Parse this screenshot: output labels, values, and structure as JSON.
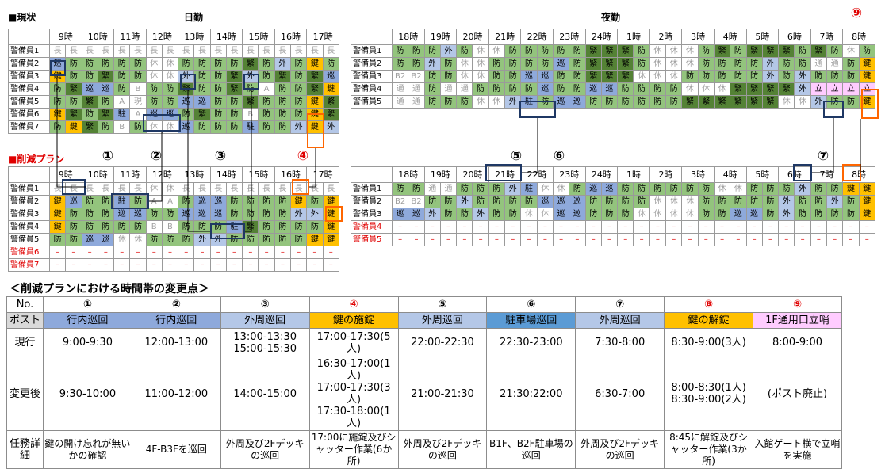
{
  "labels": {
    "current": "■現状",
    "cut": "■削減プラン",
    "day": "日勤",
    "night": "夜勤",
    "summary_title": "＜削減プランにおける時間帯の変更点＞"
  },
  "legend_colors": {
    "guard": "#93c47d",
    "patrol": "#8ea9db",
    "outer": "#b4c7e7",
    "emergency": "#548235",
    "key": "#ffc000",
    "stand": "#ffccff",
    "dash": "#e00000"
  },
  "day_hours": [
    "9時",
    "10時",
    "11時",
    "12時",
    "13時",
    "14時",
    "15時",
    "16時",
    "17時"
  ],
  "night_hours": [
    "18時",
    "19時",
    "20時",
    "21時",
    "22時",
    "23時",
    "24時",
    "1時",
    "2時",
    "3時",
    "4時",
    "5時",
    "6時",
    "7時",
    "8時"
  ],
  "guards_current": [
    "警備員1",
    "警備員2",
    "警備員3",
    "警備員4",
    "警備員5",
    "警備員6",
    "警備員7"
  ],
  "guards_plan": [
    "警備員1",
    "警備員2",
    "警備員3",
    "警備員4",
    "警備員5",
    "警備員6",
    "警備員7"
  ],
  "guards_night_plan": [
    "警備員1",
    "警備員2",
    "警備員3",
    "警備員4",
    "警備員5"
  ],
  "day_current": [
    "長 長 長 長 長 長 長 長 長 長 長 長 長 長 長 長 長 長",
    "巡 防 防 防 防 防 休 休 防 防 防 防 緊 防 外 防 鍵 防",
    "鍵 防 防 緊 防 防 休 休 外 防 防 緊 外 防 緊 防 緊 巡",
    "防 緊 巡 巡 防 B 防 防 緊 防 防 緊 防 A 防 防 緊 鍵",
    "防 防 緊 防 A 現 防 防 巡 巡 防 防 緊 防 防 防 鍵 緊",
    "鍵 緊 防 緊 駐 A 巡 巡 防 緊 防 防 B 防 防 防 鍵 緊",
    "防 鍵 緊 防 B 防 休 休 巡 防 防 防 駐 防 防 外 鍵 外"
  ],
  "night_current": [
    "防 防 防 外 防 休 休 防 防 防 防 防 緊 緊 緊 防 休 休 休 防 緊 防 緊 緊 緊 防 緊 防 休 防",
    "防 防 外 防 休 休 防 防 防 防 巡 防 緊 緊 緊 防 休 休 休 防 防 防 防 外 防 防 通 通 防 鍵",
    "B2 B2 防 防 休 休 防 防 巡 巡 防 防 緊 緊 緊 休 休 休 防 防 防 防 防 外 防 外 防 防 防 鍵",
    "通 通 防 通 通 防 防 防 防 巡 防 防 巡 巡 防 防 防 防 休 休 休 緊 緊 緊 緊 外 立 立 立 立",
    "通 通 防 防 防 休 休 外 駐 防 巡 巡 防 防 防 防 防 防 緊 緊 緊 緊 緊 緊 休 休 外 防 防 鍵"
  ],
  "day_plan": [
    "長 長 長 長 長 長 休 休 長 長 長 長 長 長 長 長 長 長",
    "鍵 巡 防 防 駐 防 A A 防 巡 巡 防 防 防 防 鍵 防 鍵",
    "鍵 防 防 防 巡 巡 防 防 巡 巡 巡 防 防 防 防 外 外 鍵",
    "鍵 防 防 防 防 防 B B 防 防 防 駐 緊 防 防 防 防 鍵",
    "防 防 巡 巡 休 休 防 防 防 外 外 防 防 防 防 防 鍵 鍵",
    "– – – – – – – – – – – – – – – – – –",
    "– – – – – – – – – – – – – – – – – –"
  ],
  "night_plan": [
    "防 防 通 通 防 防 防 外 駐 休 休 防 巡 巡 防 防 防 防 防 防 休 休 防 防 防 外 防 防 鍵 鍵",
    "B2 B2 防 防 外 防 防 防 防 巡 巡 巡 防 防 防 防 休 休 休 防 防 防 防 防 外 防 防 外 防 鍵",
    "巡 巡 外 防 防 外 防 防 休 休 巡 巡 防 防 防 休 休 休 休 防 防 巡 巡 防 外 防 防 防 防 鍵",
    "– – – – – – – – – – – – – – – – – – – – – – – – – – – – – –",
    "– – – – – – – – – – – – – – – – – – – – – – – – – – – – – –"
  ],
  "circles": [
    "①",
    "②",
    "③",
    "④",
    "⑤",
    "⑥",
    "⑦",
    "⑨"
  ],
  "summary": {
    "row_heads": [
      "No.",
      "ポスト",
      "現行",
      "変更後",
      "任務詳細"
    ],
    "cols": [
      {
        "no": "①",
        "post": "行内巡回",
        "cur": "9:00-9:30",
        "after": "9:30-10:00",
        "detail": "鍵の開け忘れが無いかの確認",
        "color": "#8ea9db",
        "red": false
      },
      {
        "no": "②",
        "post": "行内巡回",
        "cur": "12:00-13:00",
        "after": "11:00-12:00",
        "detail": "4F-B3Fを巡回",
        "color": "#8ea9db",
        "red": false
      },
      {
        "no": "③",
        "post": "外周巡回",
        "cur": "13:00-13:30\n15:00-15:30",
        "after": "14:00-15:00",
        "detail": "外周及び2Fデッキの巡回",
        "color": "#b4c7e7",
        "red": false
      },
      {
        "no": "④",
        "post": "鍵の施錠",
        "cur": "17:00-17:30(5人)",
        "after": "16:30-17:00(1人)\n17:00-17:30(3人)\n17:30-18:00(1人)",
        "detail": "17:00に施錠及びシャッター作業(6か所)",
        "color": "#ffc000",
        "red": true
      },
      {
        "no": "⑤",
        "post": "外周巡回",
        "cur": "22:00-22:30",
        "after": "21:00-21:30",
        "detail": "外周及び2Fデッキの巡回",
        "color": "#b4c7e7",
        "red": false
      },
      {
        "no": "⑥",
        "post": "駐車場巡回",
        "cur": "22:30-23:00",
        "after": "21:30:22:00",
        "detail": "B1F、B2F駐車場の巡回",
        "color": "#5b9bd5",
        "red": false
      },
      {
        "no": "⑦",
        "post": "外周巡回",
        "cur": "7:30-8:00",
        "after": "6:30-7:00",
        "detail": "外周及び2Fデッキの巡回",
        "color": "#b4c7e7",
        "red": false
      },
      {
        "no": "⑧",
        "post": "鍵の解錠",
        "cur": "8:30-9:00(3人)",
        "after": "8:00-8:30(1人)\n8:30-9:00(2人)",
        "detail": "8:45に解錠及びシャッター作業(3か所)",
        "color": "#ffc000",
        "red": true
      },
      {
        "no": "⑨",
        "post": "1F通用口立哨",
        "cur": "8:00-9:00",
        "after": "(ポスト廃止)",
        "detail": "入館ゲート横で立哨を実施",
        "color": "#ffccff",
        "red": true
      }
    ]
  }
}
